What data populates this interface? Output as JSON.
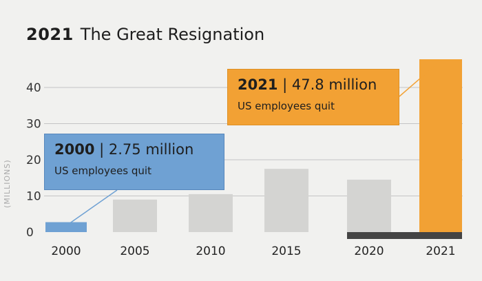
{
  "title": {
    "year": "2021",
    "text": "The Great Resignation"
  },
  "colors": {
    "gray_bar": "#d4d4d2",
    "blue": "#6fa1d3",
    "orange": "#f2a134",
    "grid": "#c4c4c4",
    "dark_base": "#444444"
  },
  "chart_data": {
    "type": "bar",
    "title": "2021 The Great Resignation",
    "ylabel": "(MILLIONS)",
    "categories": [
      "2000",
      "2005",
      "2010",
      "2015",
      "2020",
      "2021"
    ],
    "values": [
      2.75,
      9,
      10.5,
      17.5,
      14.5,
      47.8
    ],
    "yticks": [
      0,
      10,
      20,
      30,
      40
    ],
    "ylim": [
      0,
      48
    ],
    "grid": true,
    "highlight": {
      "2000": "blue",
      "2021": "orange"
    }
  },
  "callouts": [
    {
      "id": "2021",
      "year": "2021",
      "amount": "| 47.8 million",
      "sub": "US employees quit"
    },
    {
      "id": "2000",
      "year": "2000",
      "amount": "| 2.75 million",
      "sub": "US employees quit"
    }
  ]
}
